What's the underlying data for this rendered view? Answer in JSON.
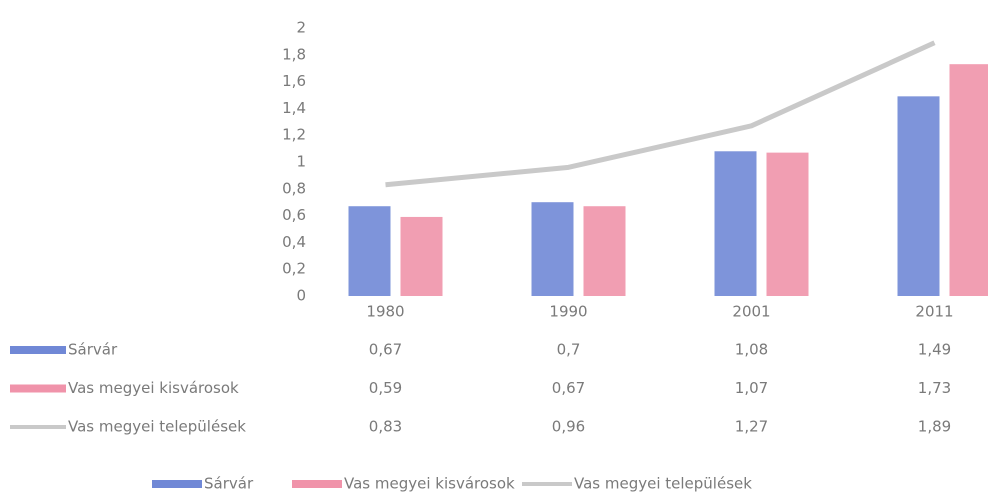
{
  "chart_data": {
    "type": "bar",
    "categories": [
      "1980",
      "1990",
      "2001",
      "2011"
    ],
    "series": [
      {
        "name": "Sárvár",
        "type": "bar",
        "color": "#7088d6",
        "values": [
          0.67,
          0.7,
          1.08,
          1.49
        ],
        "value_labels": [
          "0,67",
          "0,7",
          "1,08",
          "1,49"
        ]
      },
      {
        "name": "Vas megyei kisvárosok",
        "type": "bar",
        "color": "#f093aa",
        "values": [
          0.59,
          0.67,
          1.07,
          1.73
        ],
        "value_labels": [
          "0,59",
          "0,67",
          "1,07",
          "1,73"
        ]
      },
      {
        "name": "Vas megyei települések",
        "type": "line",
        "color": "#c9c9c9",
        "values": [
          0.83,
          0.96,
          1.27,
          1.89
        ],
        "value_labels": [
          "0,83",
          "0,96",
          "1,27",
          "1,89"
        ]
      }
    ],
    "ylim": [
      0,
      2
    ],
    "yticks": [
      0,
      {
        "value": 0.2,
        "label": "0,2"
      },
      {
        "value": 0.4,
        "label": "0,4"
      },
      {
        "value": 0.6,
        "label": "0,6"
      },
      {
        "value": 0.8,
        "label": "0,8"
      },
      1,
      {
        "value": 1.2,
        "label": "1,2"
      },
      {
        "value": 1.4,
        "label": "1,4"
      },
      {
        "value": 1.6,
        "label": "1,6"
      },
      {
        "value": 1.8,
        "label": "1,8"
      },
      2
    ],
    "grid": false,
    "legend": "bottom"
  }
}
